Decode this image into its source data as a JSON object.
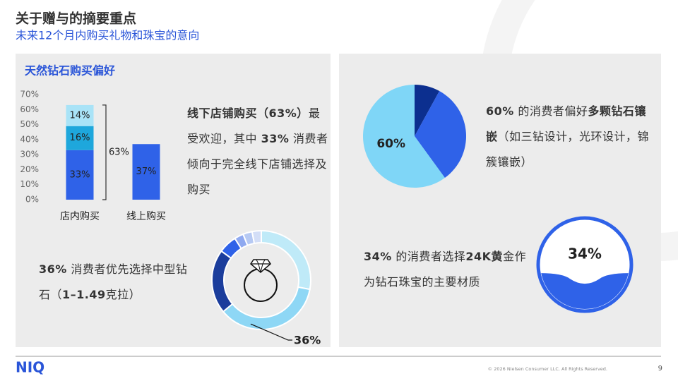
{
  "header": {
    "title": "关于赠与的摘要重点",
    "subtitle": "未来12个月内购买礼物和珠宝的意向"
  },
  "left_heading": "天然钻石购买偏好",
  "texts": {
    "store": [
      {
        "text": "线下店铺购买（63%）",
        "bold": true
      },
      {
        "text": "最受欢迎，其中 ",
        "bold": false
      },
      {
        "text": "33%",
        "bold": true
      },
      {
        "text": " 消费者倾向于完全线下店铺选择及购买",
        "bold": false
      }
    ],
    "pie": [
      {
        "text": "60%",
        "bold": true
      },
      {
        "text": " 的消费者偏好",
        "bold": false
      },
      {
        "text": "多颗钻石镶嵌",
        "bold": true
      },
      {
        "text": "（如三钻设计，光环设计，锦簇镶嵌）",
        "bold": false
      }
    ],
    "donut": [
      {
        "text": "36%",
        "bold": true
      },
      {
        "text": " 消费者优先选择中型钻石（",
        "bold": false
      },
      {
        "text": "1–1.49",
        "bold": true
      },
      {
        "text": "克拉）",
        "bold": false
      }
    ],
    "liquid": [
      {
        "text": "34%",
        "bold": true
      },
      {
        "text": " 的消费者选择",
        "bold": false
      },
      {
        "text": "24K黄",
        "bold": true
      },
      {
        "text": "金作为钻石珠宝的主要材质",
        "bold": false
      }
    ]
  },
  "chart_data": [
    {
      "type": "bar",
      "stacked": true,
      "categories": [
        "店内购买",
        "线上购买"
      ],
      "series": [
        {
          "color": "#2f62e8",
          "values": [
            33,
            37
          ],
          "value_labels": [
            "33%",
            "37%"
          ]
        },
        {
          "color": "#1ea7dc",
          "values": [
            16,
            null
          ],
          "value_labels": [
            "16%",
            null
          ]
        },
        {
          "color": "#a9e3f7",
          "values": [
            14,
            null
          ],
          "value_labels": [
            "14%",
            null
          ]
        }
      ],
      "annotation": "63%",
      "ylim": [
        0,
        70
      ],
      "yticks": [
        {
          "value": 0,
          "label": "0%"
        },
        {
          "value": 10,
          "label": "10%"
        },
        {
          "value": 20,
          "label": "20%"
        },
        {
          "value": 30,
          "label": "30%"
        },
        {
          "value": 40,
          "label": "40%"
        },
        {
          "value": 50,
          "label": "50%"
        },
        {
          "value": 60,
          "label": "60%"
        },
        {
          "value": 70,
          "label": "70%"
        }
      ],
      "grid": false
    },
    {
      "type": "pie",
      "values": [
        8,
        32,
        60
      ],
      "colors": [
        "#0c2f8f",
        "#2f62e8",
        "#7fd6f7"
      ],
      "value_labels": [
        null,
        null,
        "60%"
      ]
    },
    {
      "type": "donut",
      "values": [
        28,
        36,
        21,
        6,
        3,
        3,
        3
      ],
      "colors": [
        "#bfeaf8",
        "#8ed7f5",
        "#1b3d9c",
        "#2f62e8",
        "#8fa9f0",
        "#b6c9f3",
        "#d3def7"
      ],
      "value_labels": [
        null,
        "36%",
        null,
        null,
        null,
        null,
        null
      ]
    },
    {
      "type": "liquid",
      "values": [
        34
      ],
      "value_labels": [
        "34%"
      ],
      "color": "#2f62e8"
    }
  ],
  "footer": {
    "logo": "NIQ",
    "copyright": "© 2026 Nielsen Consumer LLC. All Rights Reserved.",
    "page": "9"
  }
}
